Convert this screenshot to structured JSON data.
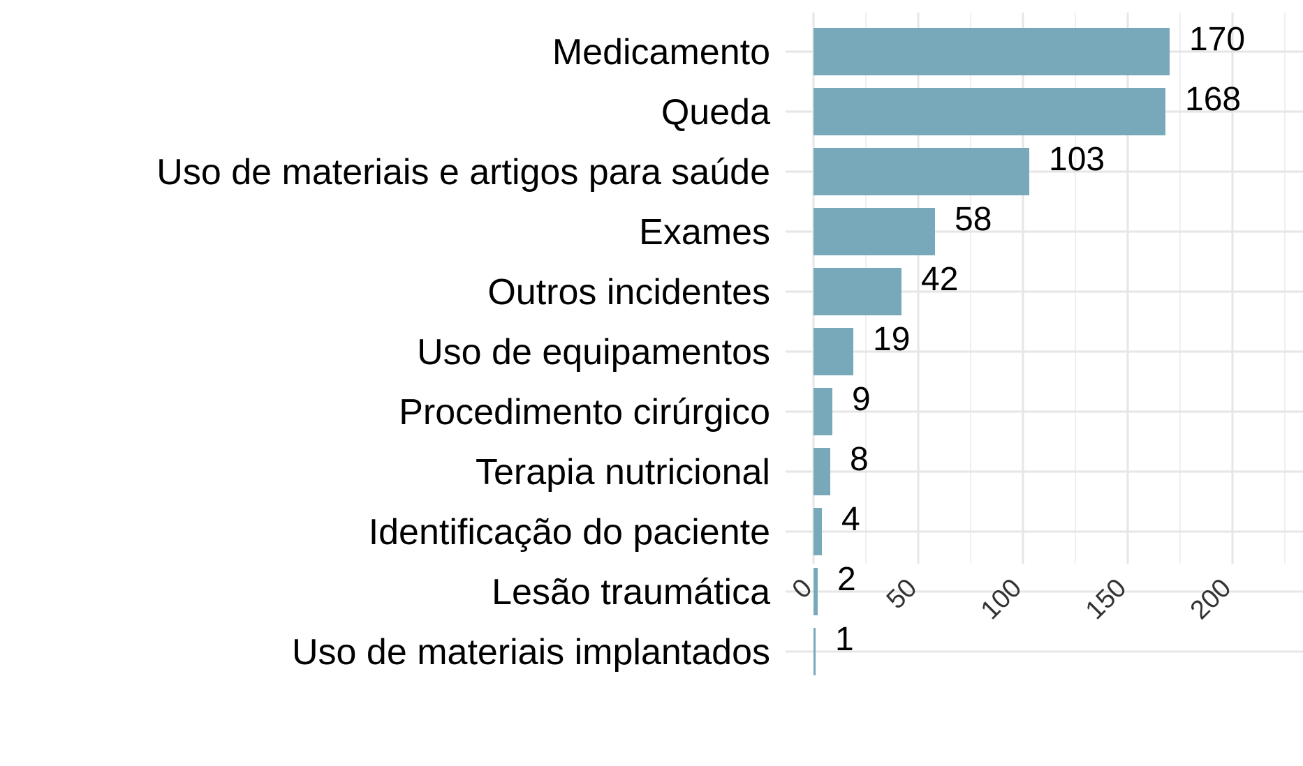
{
  "chart_data": {
    "type": "bar",
    "orientation": "horizontal",
    "title": "",
    "xlabel": "",
    "ylabel": "",
    "categories": [
      "Medicamento",
      "Queda",
      "Uso de materiais e artigos para saúde",
      "Exames",
      "Outros incidentes",
      "Uso de equipamentos",
      "Procedimento cirúrgico",
      "Terapia nutricional",
      "Identificação do paciente",
      "Lesão traumática",
      "Uso de materiais implantados"
    ],
    "values": [
      170,
      168,
      103,
      58,
      42,
      19,
      9,
      8,
      4,
      2,
      1
    ],
    "data_labels": [
      "170",
      "168",
      "103",
      "58",
      "42",
      "19",
      "9",
      "8",
      "4",
      "2",
      "1"
    ],
    "xlim": [
      0,
      225
    ],
    "x_ticks": [
      0,
      50,
      100,
      150,
      200
    ],
    "x_tick_labels": [
      "0",
      "50",
      "100",
      "150",
      "200"
    ],
    "x_minor_ticks": [
      25,
      75,
      125,
      175,
      225
    ],
    "grid": true,
    "legend": "none",
    "bar_color": "#78a9ba"
  }
}
